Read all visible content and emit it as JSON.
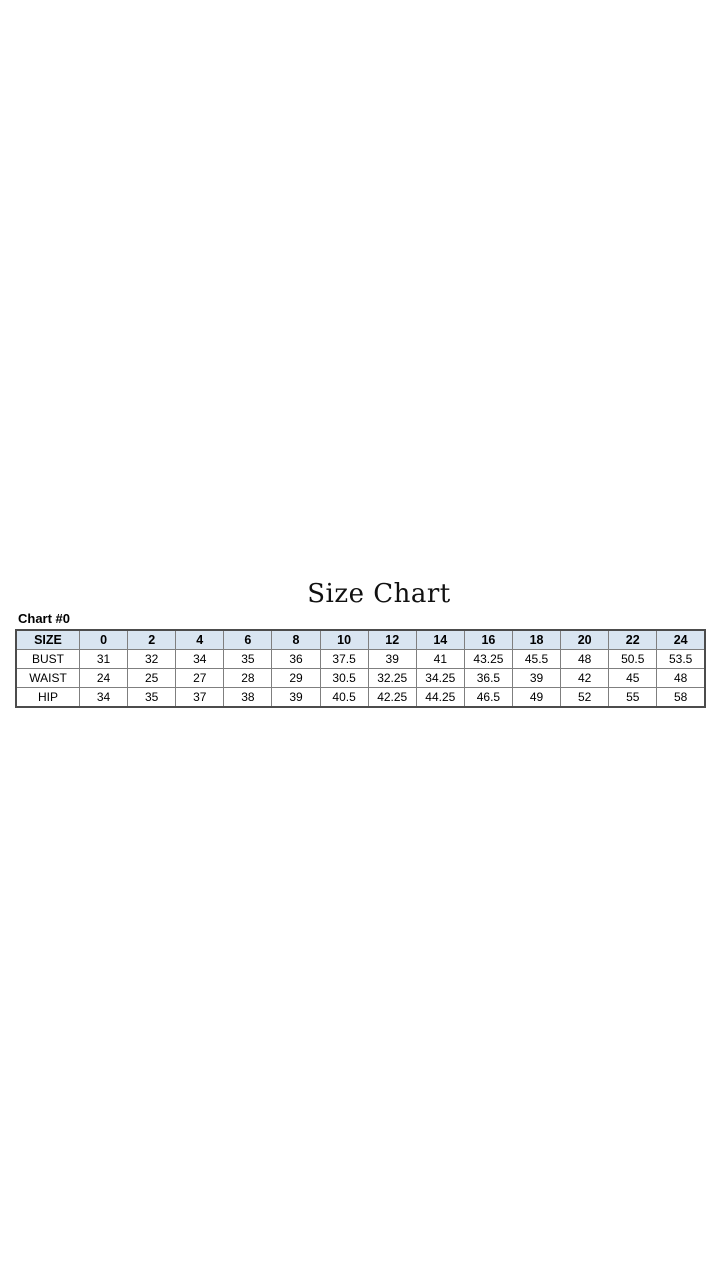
{
  "page": {
    "title": "Size Chart",
    "chart_label": "Chart #0",
    "colors": {
      "background": "#ffffff",
      "header_row_bg": "#d9e5f1",
      "grid_border": "#7f7f7f",
      "outer_border": "#4c4c4c",
      "text": "#000000"
    }
  },
  "chart_data": {
    "type": "table",
    "title": "Size Chart",
    "caption": "Chart #0",
    "columns": [
      "SIZE",
      "0",
      "2",
      "4",
      "6",
      "8",
      "10",
      "12",
      "14",
      "16",
      "18",
      "20",
      "22",
      "24"
    ],
    "rows": [
      {
        "label": "BUST",
        "values": [
          31,
          32,
          34,
          35,
          36,
          37.5,
          39,
          41,
          43.25,
          45.5,
          48,
          50.5,
          53.5
        ]
      },
      {
        "label": "WAIST",
        "values": [
          24,
          25,
          27,
          28,
          29,
          30.5,
          32.25,
          34.25,
          36.5,
          39,
          42,
          45,
          48
        ]
      },
      {
        "label": "HIP",
        "values": [
          34,
          35,
          37,
          38,
          39,
          40.5,
          42.25,
          44.25,
          46.5,
          49,
          52,
          55,
          58
        ]
      }
    ],
    "layout": {
      "header_background": "#d9e5f1",
      "grid": true,
      "title_font": "serif",
      "body_font": "sans-serif"
    }
  }
}
